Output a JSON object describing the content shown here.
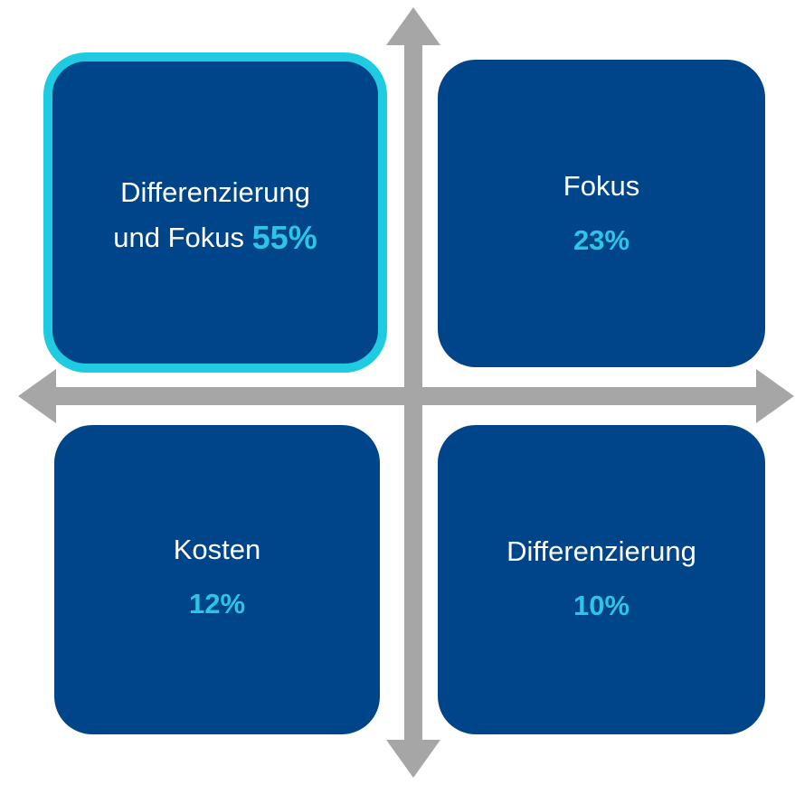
{
  "quadrants": [
    {
      "label_lines": [
        "Differenzierung",
        "und Fokus"
      ],
      "value": "55%"
    },
    {
      "label_lines": [
        "Fokus"
      ],
      "value": "23%"
    },
    {
      "label_lines": [
        "Kosten"
      ],
      "value": "12%"
    },
    {
      "label_lines": [
        "Differenzierung"
      ],
      "value": "10%"
    }
  ]
}
